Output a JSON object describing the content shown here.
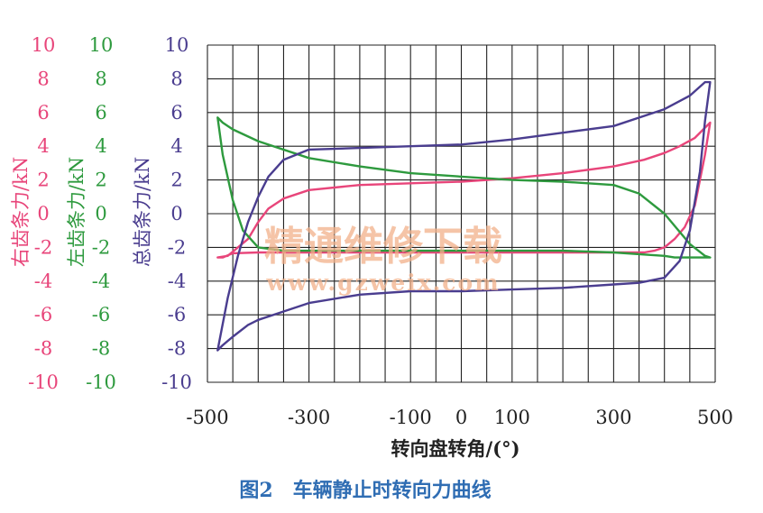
{
  "figure_caption": "图2　车辆静止时转向力曲线",
  "watermark": {
    "line1": "精通维修下载",
    "line2": "www.gzweix.com"
  },
  "colors": {
    "right_rack": "#e8457a",
    "left_rack": "#2e9a3e",
    "total_rack": "#4a3d8f",
    "caption": "#2f6db3",
    "grid": "#222222",
    "watermark": "#f2b08a"
  },
  "chart_data": {
    "type": "line",
    "xlabel": "转向盘转角/(°)",
    "x_ticks": [
      -500,
      -300,
      -100,
      0,
      100,
      300,
      500
    ],
    "xlim": [
      -500,
      500
    ],
    "grid": true,
    "y_axes": [
      {
        "label": "右齿条力/kN",
        "ylim": [
          -10,
          10
        ],
        "ticks": [
          "10",
          "8",
          "6",
          "4",
          "2",
          "0",
          "-2",
          "-4",
          "-6",
          "-8",
          "-10"
        ]
      },
      {
        "label": "左齿条力/kN",
        "ylim": [
          -10,
          10
        ],
        "ticks": [
          "10",
          "8",
          "6",
          "4",
          "2",
          "0",
          "-2",
          "-4",
          "-6",
          "-8",
          "-10"
        ]
      },
      {
        "label": "总齿条力/kN",
        "ylim": [
          -10,
          10
        ],
        "ticks": [
          "10",
          "8",
          "6",
          "4",
          "2",
          "0",
          "-2",
          "-4",
          "-6",
          "-8",
          "-10"
        ]
      }
    ],
    "series": [
      {
        "axis": 0,
        "x": [
          -480,
          -460,
          -420,
          -400,
          -380,
          -350,
          -300,
          -200,
          -100,
          0,
          100,
          200,
          300,
          360,
          400,
          430,
          460,
          480,
          490,
          480,
          460,
          440,
          420,
          400,
          380,
          360,
          300,
          200,
          100,
          0,
          -100,
          -200,
          -300,
          -400,
          -450,
          -470,
          -480
        ],
        "y": [
          -2.6,
          -2.5,
          -1.5,
          -0.5,
          0.3,
          0.9,
          1.4,
          1.7,
          1.8,
          1.9,
          2.1,
          2.4,
          2.8,
          3.2,
          3.6,
          4.0,
          4.5,
          5.1,
          5.4,
          3.5,
          0.5,
          -0.8,
          -1.5,
          -2.0,
          -2.2,
          -2.3,
          -2.3,
          -2.3,
          -2.3,
          -2.3,
          -2.3,
          -2.3,
          -2.3,
          -2.3,
          -2.35,
          -2.6,
          -2.6
        ]
      },
      {
        "axis": 1,
        "x": [
          -480,
          -470,
          -450,
          -400,
          -300,
          -200,
          -100,
          0,
          100,
          200,
          300,
          350,
          400,
          450,
          480,
          490,
          480,
          460,
          420,
          400,
          350,
          300,
          200,
          100,
          0,
          -100,
          -200,
          -300,
          -350,
          -400,
          -430,
          -450,
          -470,
          -480
        ],
        "y": [
          5.7,
          5.4,
          5.0,
          4.3,
          3.3,
          2.8,
          2.4,
          2.2,
          2.0,
          1.9,
          1.7,
          1.2,
          0.0,
          -1.8,
          -2.5,
          -2.6,
          -2.6,
          -2.6,
          -2.6,
          -2.5,
          -2.4,
          -2.3,
          -2.2,
          -2.2,
          -2.2,
          -2.2,
          -2.2,
          -2.2,
          -2.2,
          -2.0,
          -1.0,
          0.8,
          3.5,
          5.7
        ]
      },
      {
        "axis": 2,
        "x": [
          -480,
          -460,
          -440,
          -420,
          -400,
          -380,
          -350,
          -300,
          -200,
          -100,
          0,
          100,
          200,
          300,
          400,
          450,
          480,
          490,
          480,
          470,
          450,
          430,
          400,
          350,
          300,
          200,
          100,
          0,
          -100,
          -200,
          -300,
          -350,
          -400,
          -420,
          -450,
          -470,
          -480
        ],
        "y": [
          -8.1,
          -5.0,
          -2.5,
          -0.5,
          1.0,
          2.2,
          3.2,
          3.8,
          3.9,
          4.0,
          4.1,
          4.4,
          4.8,
          5.2,
          6.2,
          7.0,
          7.8,
          7.8,
          5.5,
          2.5,
          -1.0,
          -2.8,
          -3.8,
          -4.1,
          -4.2,
          -4.4,
          -4.5,
          -4.6,
          -4.6,
          -4.8,
          -5.3,
          -5.8,
          -6.3,
          -6.6,
          -7.3,
          -7.8,
          -8.1
        ]
      }
    ]
  }
}
